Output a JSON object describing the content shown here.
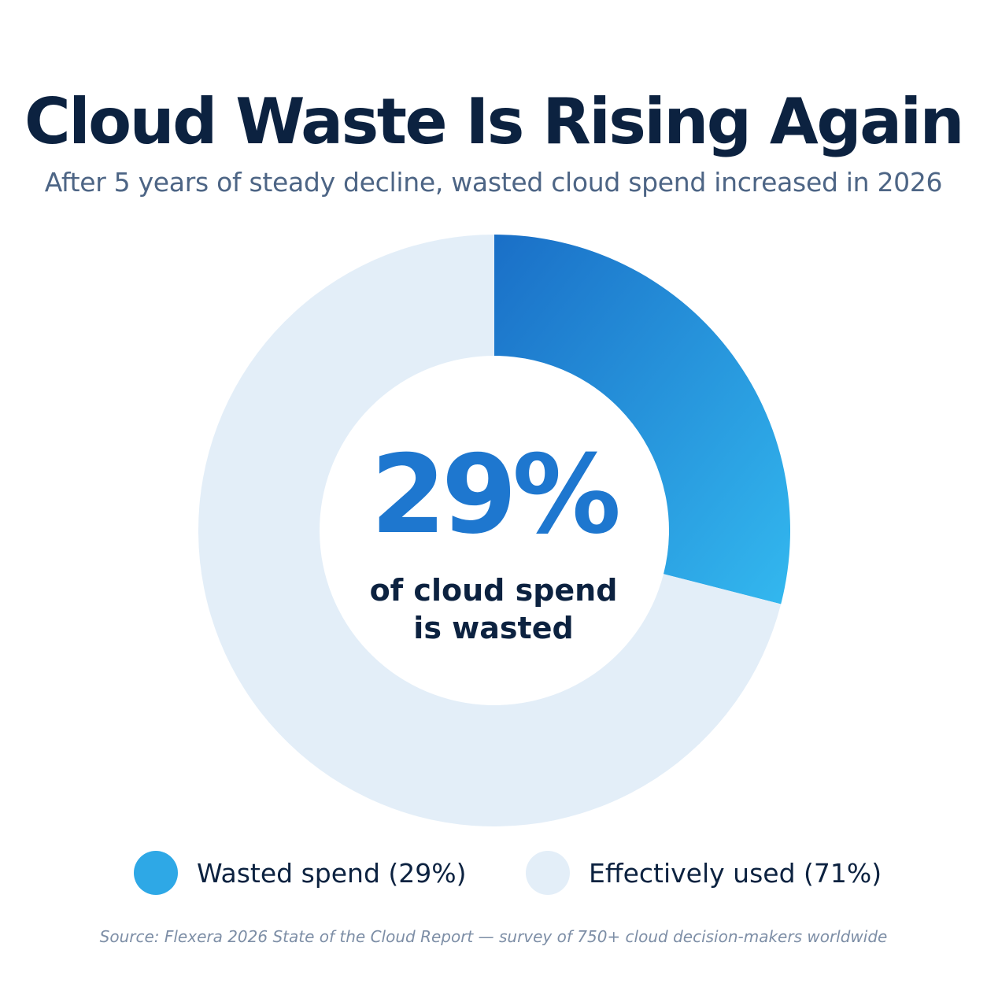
{
  "title": "Cloud Waste Is Rising Again",
  "subtitle": "After 5 years of steady decline, wasted cloud spend increased in 2026",
  "center": {
    "value": "29%",
    "label_line1": "of cloud spend",
    "label_line2": "is wasted"
  },
  "legend": [
    {
      "label": "Wasted spend (29%)",
      "color": "#2ea8e6"
    },
    {
      "label": "Effectively used (71%)",
      "color": "#e3eef8"
    }
  ],
  "source": "Source: Flexera 2026 State of the Cloud Report — survey of 750+ cloud decision-makers worldwide",
  "chart_data": {
    "type": "pie",
    "variant": "donut",
    "title": "Cloud Waste Is Rising Again",
    "slices": [
      {
        "label": "Wasted spend",
        "value": 29,
        "color_start": "#1a6fc7",
        "color_end": "#33b8ef"
      },
      {
        "label": "Effectively used",
        "value": 71,
        "color": "#e3eef8"
      }
    ],
    "legend_placement": "bottom"
  }
}
